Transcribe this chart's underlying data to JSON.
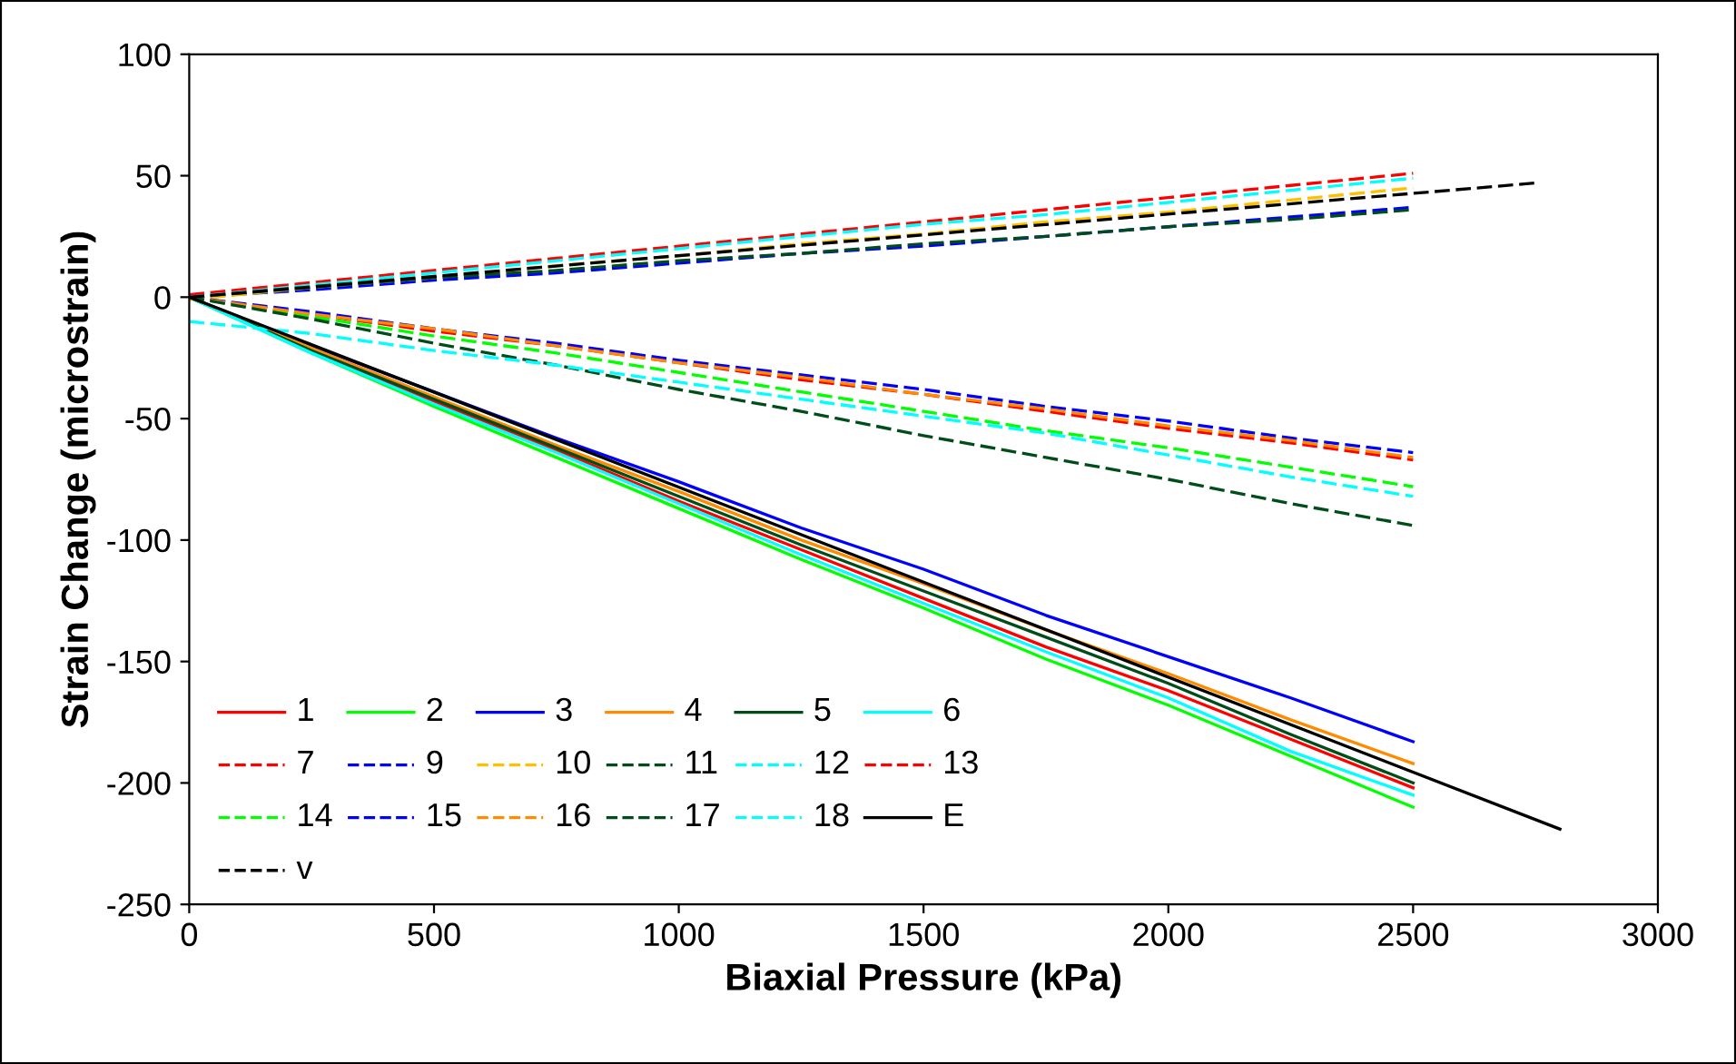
{
  "chart_data": {
    "type": "line",
    "xlabel": "Biaxial Pressure (kPa)",
    "ylabel": "Strain Change (microstrain)",
    "x": [
      0,
      250,
      500,
      750,
      1000,
      1250,
      1500,
      1750,
      2000,
      2250,
      2500
    ],
    "xlim": [
      0,
      3000
    ],
    "xticks": [
      0,
      500,
      1000,
      1500,
      2000,
      2500,
      3000
    ],
    "ylim": [
      -250,
      100
    ],
    "yticks": [
      -250,
      -200,
      -150,
      -100,
      -50,
      0,
      50,
      100
    ],
    "grid": false,
    "legend": "bottom left",
    "marker": "none",
    "series": [
      {
        "name": "1",
        "color": "#ff0000",
        "line_style": "solid",
        "values": [
          0,
          -22,
          -43,
          -63,
          -84,
          -104,
          -124,
          -144,
          -162,
          -182,
          -202
        ]
      },
      {
        "name": "2",
        "color": "#00ff00",
        "line_style": "solid",
        "values": [
          0,
          -23,
          -45,
          -66,
          -87,
          -108,
          -128,
          -149,
          -168,
          -189,
          -210
        ]
      },
      {
        "name": "3",
        "color": "#0000ff",
        "line_style": "solid",
        "values": [
          0,
          -20,
          -39,
          -58,
          -76,
          -95,
          -112,
          -131,
          -148,
          -165,
          -183
        ]
      },
      {
        "name": "4",
        "color": "#ff8c00",
        "line_style": "solid",
        "values": [
          0,
          -21,
          -41,
          -61,
          -80,
          -100,
          -118,
          -137,
          -155,
          -174,
          -192
        ]
      },
      {
        "name": "5",
        "color": "#004d1a",
        "line_style": "solid",
        "values": [
          0,
          -22,
          -42,
          -62,
          -82,
          -102,
          -121,
          -140,
          -159,
          -180,
          -200
        ]
      },
      {
        "name": "6",
        "color": "#00ffff",
        "line_style": "solid",
        "values": [
          0,
          -23,
          -44,
          -64,
          -85,
          -106,
          -126,
          -146,
          -165,
          -187,
          -205
        ]
      },
      {
        "name": "7",
        "color": "#ff0000",
        "line_style": "dashed",
        "values": [
          1,
          6,
          11,
          16,
          21,
          26,
          31,
          36,
          41,
          46,
          51
        ]
      },
      {
        "name": "9",
        "color": "#0000ff",
        "line_style": "dashed",
        "values": [
          0,
          3,
          7,
          10,
          14,
          18,
          21,
          25,
          29,
          33,
          37
        ]
      },
      {
        "name": "10",
        "color": "#ffc000",
        "line_style": "dashed",
        "values": [
          -1,
          4,
          8,
          13,
          17,
          22,
          26,
          31,
          35,
          40,
          45
        ]
      },
      {
        "name": "11",
        "color": "#004d1a",
        "line_style": "dashed",
        "values": [
          0,
          4,
          8,
          11,
          15,
          18,
          22,
          25,
          29,
          32,
          36
        ]
      },
      {
        "name": "12",
        "color": "#00ffff",
        "line_style": "dashed",
        "values": [
          0,
          5,
          10,
          15,
          20,
          25,
          30,
          34,
          39,
          44,
          49
        ]
      },
      {
        "name": "13",
        "color": "#ff0000",
        "line_style": "dashed",
        "values": [
          0,
          -7,
          -14,
          -20,
          -27,
          -34,
          -40,
          -47,
          -54,
          -60,
          -67
        ]
      },
      {
        "name": "14",
        "color": "#00ff00",
        "line_style": "dashed",
        "values": [
          0,
          -8,
          -16,
          -23,
          -31,
          -39,
          -47,
          -55,
          -62,
          -70,
          -78
        ]
      },
      {
        "name": "15",
        "color": "#0000ff",
        "line_style": "dashed",
        "values": [
          0,
          -6,
          -13,
          -19,
          -26,
          -32,
          -38,
          -45,
          -51,
          -58,
          -64
        ]
      },
      {
        "name": "16",
        "color": "#ff8c00",
        "line_style": "dashed",
        "values": [
          0,
          -7,
          -13,
          -20,
          -27,
          -33,
          -40,
          -46,
          -53,
          -59,
          -66
        ]
      },
      {
        "name": "17",
        "color": "#004d1a",
        "line_style": "dashed",
        "values": [
          0,
          -9,
          -19,
          -28,
          -38,
          -47,
          -57,
          -66,
          -75,
          -85,
          -94
        ]
      },
      {
        "name": "18",
        "color": "#00ffff",
        "line_style": "dashed",
        "values": [
          -10,
          -15,
          -22,
          -28,
          -35,
          -42,
          -49,
          -56,
          -65,
          -74,
          -82
        ]
      },
      {
        "name": "E",
        "color": "#000000",
        "line_style": "solid",
        "x": [
          0,
          2800
        ],
        "values": [
          0,
          -219
        ]
      },
      {
        "name": "v",
        "color": "#000000",
        "line_style": "dashed",
        "x": [
          0,
          2750
        ],
        "values": [
          0,
          47
        ]
      }
    ]
  }
}
